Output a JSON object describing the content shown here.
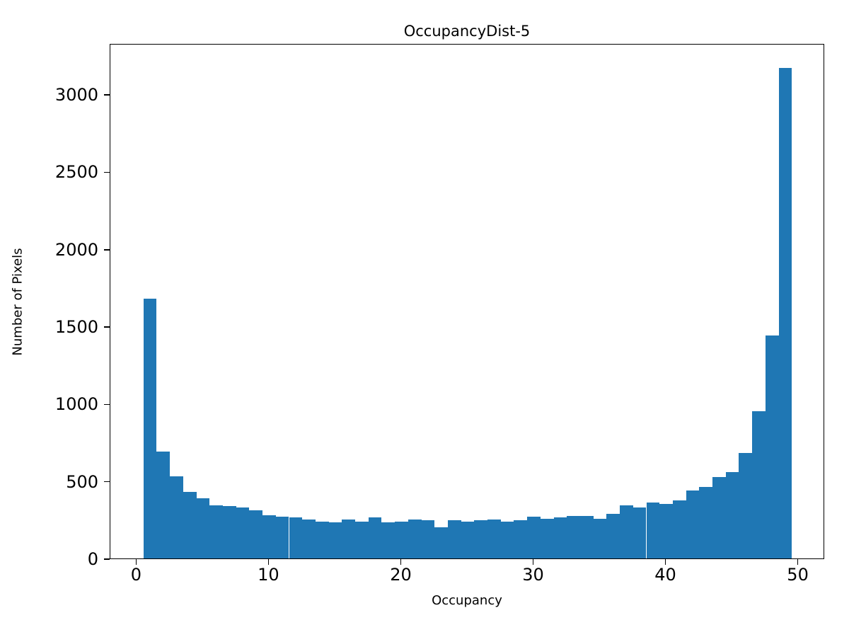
{
  "chart_data": {
    "type": "bar",
    "subtype": "histogram",
    "title": "OccupancyDist-5",
    "xlabel": "Occupancy",
    "ylabel": "Number of Pixels",
    "bar_color": "#1f77b4",
    "bin_start": 0.5,
    "bin_width": 1,
    "xlim": [
      -2,
      52
    ],
    "ylim": [
      0,
      3330
    ],
    "xticks": [
      0,
      10,
      20,
      30,
      40,
      50
    ],
    "yticks": [
      0,
      500,
      1000,
      1500,
      2000,
      2500,
      3000
    ],
    "grid": false,
    "legend": "none",
    "values": [
      1680,
      690,
      530,
      430,
      390,
      345,
      340,
      330,
      310,
      280,
      270,
      265,
      250,
      240,
      235,
      250,
      240,
      265,
      235,
      240,
      250,
      245,
      200,
      245,
      240,
      245,
      250,
      240,
      245,
      270,
      255,
      265,
      275,
      275,
      255,
      290,
      345,
      330,
      360,
      350,
      375,
      440,
      460,
      525,
      560,
      680,
      950,
      1440,
      3170
    ]
  }
}
